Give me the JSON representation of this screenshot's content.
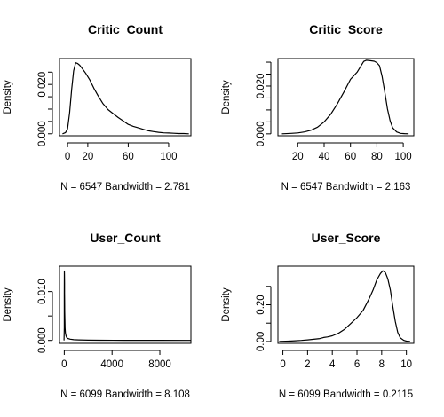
{
  "chart_data": [
    {
      "type": "line",
      "title": "Critic_Count",
      "xlabel": "N = 6547   Bandwidth = 2.781",
      "ylabel": "Density",
      "xlim": [
        -8,
        122
      ],
      "ylim": [
        -0.0008,
        0.0305
      ],
      "x_ticks": [
        0,
        20,
        60,
        100
      ],
      "y_ticks": [
        0.0,
        0.005,
        0.01,
        0.015,
        0.02,
        0.025
      ],
      "y_tick_labels": [
        "0.000",
        "",
        "",
        "",
        "0.020",
        ""
      ],
      "grid": false,
      "series": [
        {
          "x": [
            -5,
            -2,
            0,
            2,
            4,
            6,
            8,
            10,
            12,
            15,
            18,
            22,
            26,
            30,
            35,
            40,
            45,
            50,
            55,
            60,
            65,
            70,
            75,
            80,
            85,
            90,
            95,
            100,
            105,
            110,
            115,
            120
          ],
          "y": [
            0.0,
            0.0005,
            0.002,
            0.0085,
            0.018,
            0.0255,
            0.0288,
            0.0285,
            0.0278,
            0.0262,
            0.0245,
            0.0218,
            0.0185,
            0.0155,
            0.0122,
            0.0098,
            0.0082,
            0.0066,
            0.0052,
            0.0038,
            0.003,
            0.0024,
            0.0018,
            0.0012,
            0.0009,
            0.0006,
            0.0004,
            0.0003,
            0.0002,
            0.0001,
            0.0001,
            0.0
          ]
        }
      ]
    },
    {
      "type": "line",
      "title": "Critic_Score",
      "xlabel": "N = 6547   Bandwidth = 2.163",
      "ylabel": "Density",
      "xlim": [
        5,
        108
      ],
      "ylim": [
        -0.0008,
        0.0315
      ],
      "x_ticks": [
        20,
        40,
        60,
        80,
        100
      ],
      "y_ticks": [
        0.0,
        0.005,
        0.01,
        0.015,
        0.02,
        0.025,
        0.03
      ],
      "y_tick_labels": [
        "0.000",
        "",
        "",
        "",
        "0.020",
        "",
        ""
      ],
      "grid": false,
      "series": [
        {
          "x": [
            8,
            15,
            20,
            25,
            30,
            35,
            40,
            45,
            50,
            55,
            60,
            62,
            65,
            68,
            70,
            72,
            75,
            78,
            80,
            82,
            84,
            86,
            88,
            90,
            92,
            95,
            98,
            101,
            104
          ],
          "y": [
            0.0,
            0.0002,
            0.0004,
            0.0008,
            0.0015,
            0.0028,
            0.005,
            0.0082,
            0.0125,
            0.0175,
            0.0228,
            0.024,
            0.0258,
            0.0285,
            0.0303,
            0.0308,
            0.0306,
            0.0304,
            0.0298,
            0.0285,
            0.024,
            0.0175,
            0.0105,
            0.0055,
            0.0025,
            0.0008,
            0.0002,
            0.0001,
            0.0
          ]
        }
      ]
    },
    {
      "type": "line",
      "title": "User_Count",
      "xlabel": "N = 6099   Bandwidth = 8.108",
      "ylabel": "Density",
      "xlim": [
        -400,
        10600
      ],
      "ylim": [
        -0.0006,
        0.0152
      ],
      "x_ticks": [
        0,
        4000,
        8000
      ],
      "y_ticks": [
        0.0,
        0.005,
        0.01
      ],
      "y_tick_labels": [
        "0.000",
        "",
        "0.010"
      ],
      "grid": false,
      "series": [
        {
          "x": [
            -20,
            0,
            5,
            10,
            15,
            20,
            25,
            30,
            40,
            50,
            70,
            100,
            150,
            200,
            300,
            500,
            800,
            1200,
            2000,
            3000,
            5000,
            8000,
            10600
          ],
          "y": [
            0.0,
            0.0025,
            0.0095,
            0.0142,
            0.0135,
            0.0118,
            0.0098,
            0.0082,
            0.0058,
            0.0042,
            0.0025,
            0.0015,
            0.0009,
            0.0006,
            0.0004,
            0.00025,
            0.00015,
            0.0001,
            6e-05,
            4e-05,
            2e-05,
            1e-05,
            0.0
          ]
        }
      ]
    },
    {
      "type": "line",
      "title": "User_Score",
      "xlabel": "N = 6099   Bandwidth = 0.2115",
      "ylabel": "Density",
      "xlim": [
        -0.4,
        10.6
      ],
      "ylim": [
        -0.01,
        0.41
      ],
      "x_ticks": [
        0,
        2,
        4,
        6,
        8,
        10
      ],
      "y_ticks": [
        0.0,
        0.1,
        0.2,
        0.3
      ],
      "y_tick_labels": [
        "0.00",
        "",
        "0.20",
        ""
      ],
      "grid": false,
      "series": [
        {
          "x": [
            -0.3,
            0.5,
            1.0,
            1.5,
            2.0,
            2.5,
            3.0,
            3.3,
            3.6,
            4.0,
            4.5,
            5.0,
            5.5,
            6.0,
            6.5,
            7.0,
            7.3,
            7.6,
            7.9,
            8.1,
            8.3,
            8.5,
            8.7,
            8.9,
            9.1,
            9.3,
            9.5,
            9.8,
            10.0,
            10.3
          ],
          "y": [
            0.0,
            0.002,
            0.004,
            0.006,
            0.009,
            0.012,
            0.016,
            0.022,
            0.025,
            0.031,
            0.045,
            0.067,
            0.098,
            0.13,
            0.17,
            0.235,
            0.28,
            0.335,
            0.37,
            0.385,
            0.375,
            0.34,
            0.28,
            0.19,
            0.11,
            0.05,
            0.02,
            0.006,
            0.002,
            0.0
          ]
        }
      ]
    }
  ]
}
